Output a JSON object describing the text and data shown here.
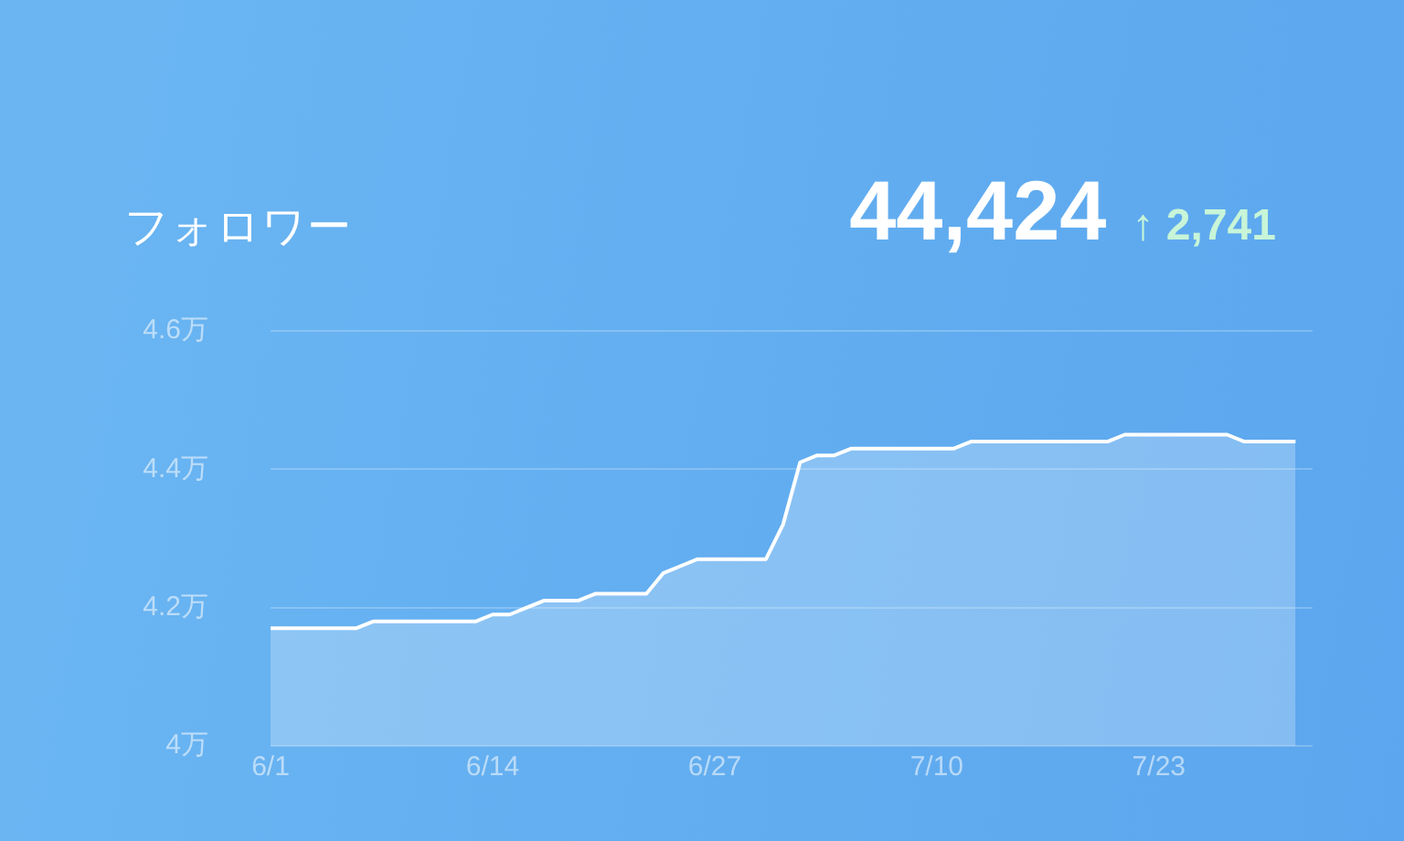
{
  "chart_data": {
    "type": "area",
    "title": "フォロワー",
    "annotations": [
      "44,424",
      "↑ 2,741"
    ],
    "x": [
      "--06-01",
      "--06-02",
      "--06-03",
      "--06-04",
      "--06-05",
      "--06-06",
      "--06-07",
      "--06-08",
      "--06-09",
      "--06-10",
      "--06-11",
      "--06-12",
      "--06-13",
      "--06-14",
      "--06-15",
      "--06-16",
      "--06-17",
      "--06-18",
      "--06-19",
      "--06-20",
      "--06-21",
      "--06-22",
      "--06-23",
      "--06-24",
      "--06-25",
      "--06-26",
      "--06-27",
      "--06-28",
      "--06-29",
      "--06-30",
      "--07-01",
      "--07-02",
      "--07-03",
      "--07-04",
      "--07-05",
      "--07-06",
      "--07-07",
      "--07-08",
      "--07-09",
      "--07-10",
      "--07-11",
      "--07-12",
      "--07-13",
      "--07-14",
      "--07-15",
      "--07-16",
      "--07-17",
      "--07-18",
      "--07-19",
      "--07-20",
      "--07-21",
      "--07-22",
      "--07-23",
      "--07-24",
      "--07-25",
      "--07-26",
      "--07-27",
      "--07-28",
      "--07-29",
      "--07-30",
      "--07-31"
    ],
    "series": [
      {
        "color": "#ffffff",
        "values": [
          4.17,
          4.17,
          4.17,
          4.17,
          4.17,
          4.17,
          4.18,
          4.18,
          4.18,
          4.18,
          4.18,
          4.18,
          4.18,
          4.19,
          4.19,
          4.2,
          4.21,
          4.21,
          4.21,
          4.22,
          4.22,
          4.22,
          4.22,
          4.25,
          4.26,
          4.27,
          4.27,
          4.27,
          4.27,
          4.27,
          4.32,
          4.41,
          4.42,
          4.42,
          4.43,
          4.43,
          4.43,
          4.43,
          4.43,
          4.43,
          4.43,
          4.44,
          4.44,
          4.44,
          4.44,
          4.44,
          4.44,
          4.44,
          4.44,
          4.44,
          4.45,
          4.45,
          4.45,
          4.45,
          4.45,
          4.45,
          4.45,
          4.44,
          4.44,
          4.44,
          4.44
        ]
      }
    ],
    "xlim": [
      "--06-01",
      "--08-01"
    ],
    "xticks": [
      {
        "value": "--06-01",
        "label": "6/1"
      },
      {
        "value": "--06-14",
        "label": "6/14"
      },
      {
        "value": "--06-27",
        "label": "6/27"
      },
      {
        "value": "--07-10",
        "label": "7/10"
      },
      {
        "value": "--07-23",
        "label": "7/23"
      }
    ],
    "ylim": [
      4,
      4.6
    ],
    "yticks": [
      {
        "value": 4,
        "label": "4万"
      },
      {
        "value": 4.2,
        "label": "4.2万"
      },
      {
        "value": 4.4,
        "label": "4.4万"
      },
      {
        "value": 4.6,
        "label": "4.6万"
      }
    ],
    "grid": "y"
  }
}
